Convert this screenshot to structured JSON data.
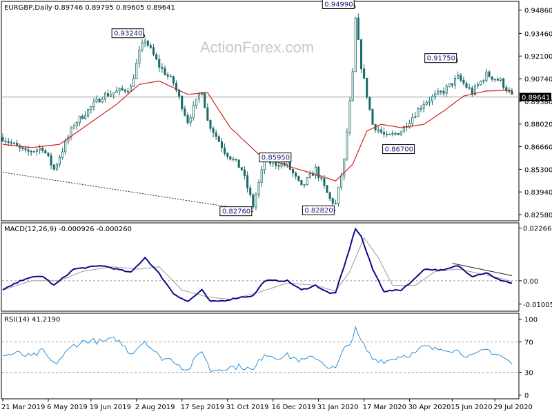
{
  "chart_data": {
    "type": "candlestick",
    "symbol_header": "EURGBP,Daily  0.89746 0.89795 0.89605 0.89641",
    "watermark": "ActionForex.com",
    "colors": {
      "candle_up": "#1a6a6a",
      "candle_down": "#1a6a6a",
      "ma": "#d42020",
      "macd": "#0a0a8a",
      "signal": "#9a9a9a",
      "rsi": "#2a8fd8",
      "trendline": "#202020"
    },
    "price_panel": {
      "ylim": [
        0.8229,
        0.953
      ],
      "ticks": [
        "0.94860",
        "0.93460",
        "0.92100",
        "0.90740",
        "0.89380",
        "0.88020",
        "0.86660",
        "0.85300",
        "0.83940",
        "0.82580"
      ],
      "current_price": "0.89641",
      "annotations": [
        {
          "label": "0.93240",
          "date_index": 50,
          "value": 0.9324
        },
        {
          "label": "0.94990",
          "date_index": 124,
          "value": 0.9499
        },
        {
          "label": "0.85950",
          "date_index": 96,
          "value": 0.8595
        },
        {
          "label": "0.82760",
          "date_index": 88,
          "value": 0.8276
        },
        {
          "label": "0.82820",
          "date_index": 117,
          "value": 0.8282
        },
        {
          "label": "0.86700",
          "date_index": 135,
          "value": 0.867
        },
        {
          "label": "0.91750",
          "date_index": 160,
          "value": 0.9175
        }
      ],
      "trendline": {
        "from": [
          0,
          0.8512
        ],
        "to": [
          85,
          0.829
        ]
      },
      "ma_period_label": "",
      "anchors": [
        [
          0,
          0.872
        ],
        [
          8,
          0.863
        ],
        [
          14,
          0.866
        ],
        [
          18,
          0.853
        ],
        [
          25,
          0.88
        ],
        [
          35,
          0.897
        ],
        [
          45,
          0.902
        ],
        [
          48,
          0.923
        ],
        [
          50,
          0.931
        ],
        [
          55,
          0.915
        ],
        [
          60,
          0.905
        ],
        [
          65,
          0.882
        ],
        [
          70,
          0.901
        ],
        [
          72,
          0.882
        ],
        [
          78,
          0.864
        ],
        [
          84,
          0.853
        ],
        [
          88,
          0.831
        ],
        [
          92,
          0.858
        ],
        [
          96,
          0.8565
        ],
        [
          100,
          0.856
        ],
        [
          105,
          0.842
        ],
        [
          110,
          0.853
        ],
        [
          115,
          0.835
        ],
        [
          117,
          0.832
        ],
        [
          120,
          0.858
        ],
        [
          123,
          0.91
        ],
        [
          124,
          0.943
        ],
        [
          126,
          0.915
        ],
        [
          130,
          0.88
        ],
        [
          135,
          0.872
        ],
        [
          140,
          0.876
        ],
        [
          148,
          0.893
        ],
        [
          155,
          0.9
        ],
        [
          160,
          0.908
        ],
        [
          165,
          0.899
        ],
        [
          170,
          0.91
        ],
        [
          175,
          0.906
        ],
        [
          179,
          0.8966
        ]
      ],
      "ma_anchors": [
        [
          0,
          0.868
        ],
        [
          10,
          0.866
        ],
        [
          20,
          0.868
        ],
        [
          30,
          0.88
        ],
        [
          40,
          0.892
        ],
        [
          48,
          0.904
        ],
        [
          55,
          0.906
        ],
        [
          65,
          0.898
        ],
        [
          72,
          0.899
        ],
        [
          80,
          0.878
        ],
        [
          90,
          0.862
        ],
        [
          100,
          0.855
        ],
        [
          110,
          0.85
        ],
        [
          117,
          0.846
        ],
        [
          123,
          0.856
        ],
        [
          128,
          0.876
        ],
        [
          133,
          0.88
        ],
        [
          140,
          0.878
        ],
        [
          148,
          0.88
        ],
        [
          155,
          0.888
        ],
        [
          162,
          0.897
        ],
        [
          170,
          0.9
        ],
        [
          179,
          0.9005
        ]
      ]
    },
    "macd_panel": {
      "label": "MACD(12,26,9) -0.000926 -0.000260",
      "ylim": [
        -0.0125,
        0.024
      ],
      "ticks": [
        "0.022662",
        "0.00",
        "-0.010052"
      ],
      "zero_line": 0.0,
      "trendline": {
        "from": [
          158,
          0.0075
        ],
        "to": [
          179,
          0.0022
        ]
      },
      "anchors": [
        [
          0,
          -0.004
        ],
        [
          8,
          0.001
        ],
        [
          14,
          0.002
        ],
        [
          18,
          -0.002
        ],
        [
          25,
          0.005
        ],
        [
          35,
          0.0065
        ],
        [
          45,
          0.0035
        ],
        [
          50,
          0.01
        ],
        [
          55,
          0.003
        ],
        [
          60,
          -0.0055
        ],
        [
          65,
          -0.009
        ],
        [
          70,
          -0.004
        ],
        [
          73,
          -0.009
        ],
        [
          78,
          -0.0085
        ],
        [
          84,
          -0.007
        ],
        [
          88,
          -0.0065
        ],
        [
          92,
          0.0
        ],
        [
          100,
          0.0
        ],
        [
          105,
          -0.004
        ],
        [
          110,
          -0.002
        ],
        [
          115,
          -0.0055
        ],
        [
          117,
          -0.005
        ],
        [
          120,
          0.006
        ],
        [
          124,
          0.0225
        ],
        [
          126,
          0.019
        ],
        [
          130,
          0.005
        ],
        [
          134,
          -0.0045
        ],
        [
          140,
          -0.004
        ],
        [
          145,
          0.001
        ],
        [
          148,
          0.005
        ],
        [
          155,
          0.0045
        ],
        [
          160,
          0.0065
        ],
        [
          165,
          0.002
        ],
        [
          170,
          0.0035
        ],
        [
          175,
          0.0
        ],
        [
          179,
          -0.0009
        ]
      ],
      "signal_anchors": [
        [
          0,
          -0.004
        ],
        [
          10,
          0.0
        ],
        [
          20,
          0.0
        ],
        [
          28,
          0.004
        ],
        [
          38,
          0.006
        ],
        [
          48,
          0.005
        ],
        [
          55,
          0.006
        ],
        [
          63,
          -0.004
        ],
        [
          72,
          -0.007
        ],
        [
          80,
          -0.008
        ],
        [
          90,
          -0.005
        ],
        [
          100,
          -0.001
        ],
        [
          110,
          -0.002
        ],
        [
          117,
          -0.0045
        ],
        [
          122,
          0.004
        ],
        [
          127,
          0.0185
        ],
        [
          132,
          0.01
        ],
        [
          137,
          -0.002
        ],
        [
          145,
          -0.002
        ],
        [
          152,
          0.004
        ],
        [
          160,
          0.005
        ],
        [
          168,
          0.003
        ],
        [
          175,
          0.001
        ],
        [
          179,
          -0.0003
        ]
      ]
    },
    "rsi_panel": {
      "label": "RSI(14) 41.2190",
      "ylim": [
        -3,
        105
      ],
      "ticks": [
        "100",
        "70",
        "30",
        "0"
      ],
      "levels": [
        70,
        30
      ],
      "anchors": [
        [
          0,
          52
        ],
        [
          5,
          55
        ],
        [
          10,
          50
        ],
        [
          14,
          58
        ],
        [
          18,
          40
        ],
        [
          25,
          66
        ],
        [
          30,
          72
        ],
        [
          35,
          70
        ],
        [
          40,
          74
        ],
        [
          45,
          55
        ],
        [
          50,
          72
        ],
        [
          55,
          50
        ],
        [
          60,
          46
        ],
        [
          65,
          32
        ],
        [
          70,
          60
        ],
        [
          73,
          32
        ],
        [
          78,
          36
        ],
        [
          84,
          38
        ],
        [
          88,
          32
        ],
        [
          92,
          55
        ],
        [
          96,
          50
        ],
        [
          100,
          52
        ],
        [
          105,
          45
        ],
        [
          110,
          50
        ],
        [
          115,
          36
        ],
        [
          117,
          35
        ],
        [
          120,
          60
        ],
        [
          123,
          75
        ],
        [
          124,
          86
        ],
        [
          126,
          70
        ],
        [
          130,
          48
        ],
        [
          135,
          45
        ],
        [
          140,
          52
        ],
        [
          145,
          55
        ],
        [
          148,
          64
        ],
        [
          152,
          60
        ],
        [
          155,
          62
        ],
        [
          160,
          58
        ],
        [
          165,
          50
        ],
        [
          170,
          60
        ],
        [
          175,
          52
        ],
        [
          179,
          41
        ]
      ]
    },
    "x_axis": {
      "total_bars": 180,
      "labels": [
        {
          "text": "21 Mar 2019",
          "index": 0
        },
        {
          "text": "6 May 2019",
          "index": 16
        },
        {
          "text": "19 Jun 2019",
          "index": 31
        },
        {
          "text": "2 Aug 2019",
          "index": 47
        },
        {
          "text": "17 Sep 2019",
          "index": 63
        },
        {
          "text": "31 Oct 2019",
          "index": 79
        },
        {
          "text": "16 Dec 2019",
          "index": 95
        },
        {
          "text": "31 Jan 2020",
          "index": 111
        },
        {
          "text": "17 Mar 2020",
          "index": 127
        },
        {
          "text": "30 Apr 2020",
          "index": 143
        },
        {
          "text": "15 Jun 2020",
          "index": 158
        },
        {
          "text": "29 Jul 2020",
          "index": 173
        }
      ]
    }
  }
}
